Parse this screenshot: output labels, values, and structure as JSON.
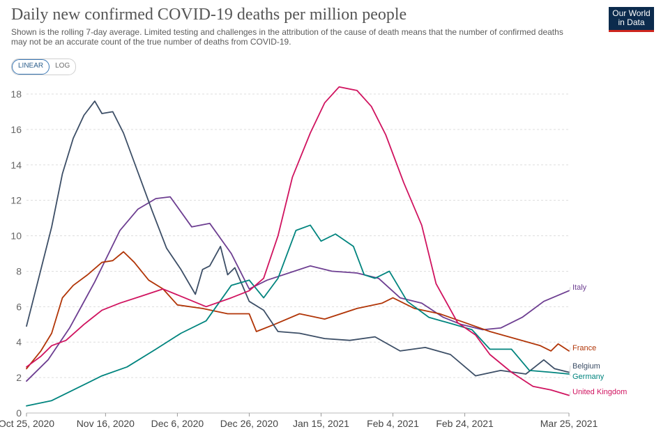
{
  "header": {
    "title": "Daily new confirmed COVID-19 deaths per million people",
    "subtitle": "Shown is the rolling 7-day average. Limited testing and challenges in the attribution of the cause of death means that the number of confirmed deaths may not be an accurate count of the true number of deaths from COVID-19.",
    "logo_line1": "Our World",
    "logo_line2": "in Data"
  },
  "controls": {
    "linear_label": "LINEAR",
    "log_label": "LOG",
    "selected": "LINEAR"
  },
  "chart_data": {
    "type": "line",
    "title": "Daily new confirmed COVID-19 deaths per million people",
    "ylim": [
      0,
      18
    ],
    "yticks": [
      "0",
      "2",
      "4",
      "6",
      "8",
      "10",
      "12",
      "14",
      "16",
      "18"
    ],
    "xlim": [
      "2020-10-25",
      "2021-03-25"
    ],
    "xticks": [
      "Oct 25, 2020",
      "Nov 16, 2020",
      "Dec 6, 2020",
      "Dec 26, 2020",
      "Jan 15, 2021",
      "Feb 4, 2021",
      "Feb 24, 2021",
      "Mar 25, 2021"
    ],
    "grid": "horizontal dashed",
    "legend": "line-end labels",
    "series": [
      {
        "name": "Italy",
        "color": "#6d3e91",
        "x": [
          "2020-10-25",
          "2020-10-31",
          "2020-11-06",
          "2020-11-13",
          "2020-11-20",
          "2020-11-25",
          "2020-11-30",
          "2020-12-04",
          "2020-12-10",
          "2020-12-15",
          "2020-12-21",
          "2020-12-26",
          "2020-12-31",
          "2021-01-06",
          "2021-01-12",
          "2021-01-18",
          "2021-01-25",
          "2021-01-31",
          "2021-02-06",
          "2021-02-12",
          "2021-02-18",
          "2021-02-23",
          "2021-03-01",
          "2021-03-06",
          "2021-03-12",
          "2021-03-18",
          "2021-03-25"
        ],
        "values": [
          1.8,
          3.0,
          4.8,
          7.4,
          10.3,
          11.5,
          12.1,
          12.2,
          10.5,
          10.7,
          9.0,
          7.0,
          7.5,
          7.9,
          8.3,
          8.0,
          7.9,
          7.6,
          6.5,
          6.2,
          5.4,
          5.0,
          4.7,
          4.8,
          5.4,
          6.3,
          6.9
        ]
      },
      {
        "name": "France",
        "color": "#b13507",
        "x": [
          "2020-10-25",
          "2020-10-29",
          "2020-11-01",
          "2020-11-04",
          "2020-11-07",
          "2020-11-11",
          "2020-11-15",
          "2020-11-18",
          "2020-11-21",
          "2020-11-24",
          "2020-11-28",
          "2020-12-02",
          "2020-12-06",
          "2020-12-13",
          "2020-12-20",
          "2020-12-26",
          "2020-12-28",
          "2021-01-02",
          "2021-01-09",
          "2021-01-16",
          "2021-01-25",
          "2021-02-01",
          "2021-02-04",
          "2021-02-10",
          "2021-02-17",
          "2021-02-24",
          "2021-03-03",
          "2021-03-10",
          "2021-03-17",
          "2021-03-20",
          "2021-03-22",
          "2021-03-25"
        ],
        "values": [
          2.5,
          3.5,
          4.5,
          6.5,
          7.2,
          7.8,
          8.5,
          8.6,
          9.1,
          8.5,
          7.5,
          7.0,
          6.1,
          5.9,
          5.6,
          5.6,
          4.6,
          5.0,
          5.6,
          5.3,
          5.9,
          6.2,
          6.5,
          5.9,
          5.6,
          5.1,
          4.6,
          4.2,
          3.8,
          3.5,
          3.9,
          3.5
        ]
      },
      {
        "name": "Belgium",
        "color": "#3c4e66",
        "x": [
          "2020-10-25",
          "2020-10-28",
          "2020-11-01",
          "2020-11-04",
          "2020-11-07",
          "2020-11-10",
          "2020-11-13",
          "2020-11-15",
          "2020-11-18",
          "2020-11-21",
          "2020-11-25",
          "2020-11-29",
          "2020-12-03",
          "2020-12-07",
          "2020-12-11",
          "2020-12-13",
          "2020-12-15",
          "2020-12-18",
          "2020-12-20",
          "2020-12-22",
          "2020-12-26",
          "2020-12-30",
          "2021-01-03",
          "2021-01-09",
          "2021-01-16",
          "2021-01-23",
          "2021-01-30",
          "2021-02-06",
          "2021-02-13",
          "2021-02-20",
          "2021-02-27",
          "2021-03-06",
          "2021-03-13",
          "2021-03-18",
          "2021-03-21",
          "2021-03-25"
        ],
        "values": [
          4.9,
          7.3,
          10.5,
          13.5,
          15.5,
          16.8,
          17.6,
          16.9,
          17.0,
          15.8,
          13.6,
          11.4,
          9.3,
          8.1,
          6.7,
          8.1,
          8.3,
          9.4,
          7.8,
          8.2,
          6.3,
          5.8,
          4.6,
          4.5,
          4.2,
          4.1,
          4.3,
          3.5,
          3.7,
          3.3,
          2.1,
          2.4,
          2.2,
          3.0,
          2.5,
          2.3
        ]
      },
      {
        "name": "Germany",
        "color": "#00847e",
        "x": [
          "2020-10-25",
          "2020-11-01",
          "2020-11-08",
          "2020-11-15",
          "2020-11-22",
          "2020-11-30",
          "2020-12-07",
          "2020-12-14",
          "2020-12-21",
          "2020-12-26",
          "2020-12-30",
          "2021-01-03",
          "2021-01-08",
          "2021-01-12",
          "2021-01-15",
          "2021-01-19",
          "2021-01-24",
          "2021-01-27",
          "2021-01-30",
          "2021-02-03",
          "2021-02-08",
          "2021-02-14",
          "2021-02-21",
          "2021-02-26",
          "2021-03-03",
          "2021-03-09",
          "2021-03-14",
          "2021-03-20",
          "2021-03-25"
        ],
        "values": [
          0.4,
          0.7,
          1.4,
          2.1,
          2.6,
          3.6,
          4.5,
          5.2,
          7.2,
          7.5,
          6.5,
          7.6,
          10.3,
          10.6,
          9.7,
          10.1,
          9.4,
          7.8,
          7.6,
          8.0,
          6.3,
          5.4,
          5.0,
          4.7,
          3.6,
          3.6,
          2.4,
          2.3,
          2.2
        ]
      },
      {
        "name": "United Kingdom",
        "color": "#d0135f",
        "x": [
          "2020-10-25",
          "2020-10-29",
          "2020-11-01",
          "2020-11-05",
          "2020-11-10",
          "2020-11-15",
          "2020-11-20",
          "2020-11-26",
          "2020-12-02",
          "2020-12-08",
          "2020-12-14",
          "2020-12-21",
          "2020-12-26",
          "2020-12-30",
          "2021-01-03",
          "2021-01-07",
          "2021-01-12",
          "2021-01-16",
          "2021-01-20",
          "2021-01-25",
          "2021-01-29",
          "2021-02-02",
          "2021-02-07",
          "2021-02-12",
          "2021-02-16",
          "2021-02-22",
          "2021-02-27",
          "2021-03-03",
          "2021-03-09",
          "2021-03-15",
          "2021-03-20",
          "2021-03-25"
        ],
        "values": [
          2.6,
          3.2,
          3.8,
          4.1,
          5.0,
          5.8,
          6.2,
          6.6,
          7.0,
          6.5,
          6.0,
          6.5,
          6.9,
          7.6,
          10.0,
          13.3,
          15.8,
          17.5,
          18.4,
          18.2,
          17.3,
          15.7,
          13.0,
          10.6,
          7.3,
          5.1,
          4.4,
          3.3,
          2.3,
          1.5,
          1.3,
          1.0
        ]
      }
    ]
  }
}
